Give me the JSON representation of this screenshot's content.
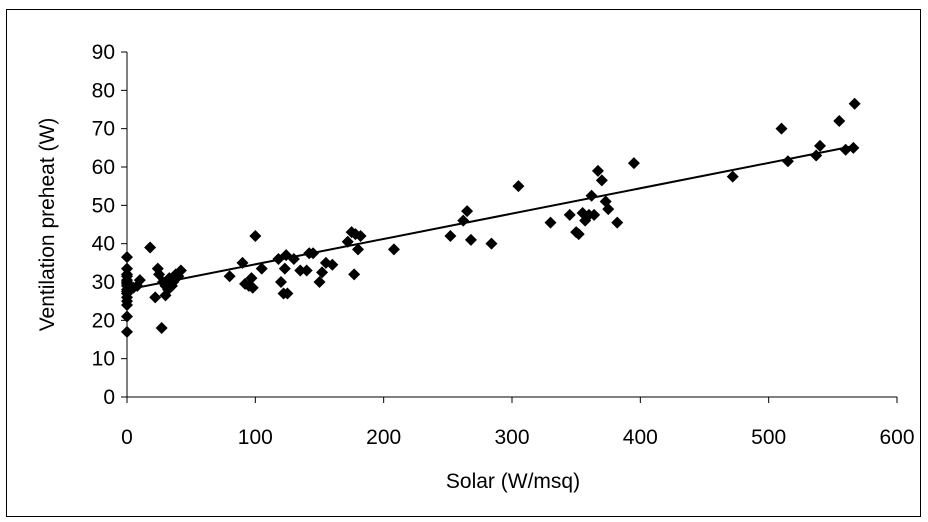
{
  "chart_data": {
    "type": "scatter",
    "title": "",
    "xlabel": "Solar  (W/msq)",
    "ylabel": "Ventilation preheat (W)",
    "xlim": [
      0,
      600
    ],
    "ylim": [
      0,
      90
    ],
    "xticks": [
      0,
      100,
      200,
      300,
      400,
      500,
      600
    ],
    "yticks": [
      0,
      10,
      20,
      30,
      40,
      50,
      60,
      70,
      80,
      90
    ],
    "grid": false,
    "legend": "none",
    "marker": "diamond",
    "marker_color": "#000000",
    "trendline": {
      "type": "linear",
      "x": [
        0,
        567
      ],
      "y": [
        28,
        65.5
      ],
      "color": "#000000"
    },
    "series": [
      {
        "x": [
          0,
          0,
          0,
          0,
          0,
          0,
          0,
          0,
          0,
          0,
          0,
          0,
          0,
          0,
          0,
          0,
          5,
          8,
          10,
          18,
          22,
          24,
          25,
          27,
          28,
          30,
          30,
          32,
          33,
          35,
          36,
          38,
          40,
          42,
          80,
          90,
          92,
          95,
          97,
          98,
          100,
          105,
          118,
          120,
          122,
          123,
          124,
          125,
          130,
          135,
          140,
          142,
          145,
          150,
          152,
          155,
          160,
          172,
          175,
          177,
          178,
          180,
          182,
          208,
          252,
          262,
          265,
          268,
          284,
          305,
          330,
          345,
          350,
          352,
          355,
          357,
          360,
          362,
          364,
          367,
          370,
          373,
          375,
          382,
          395,
          472,
          510,
          515,
          537,
          540,
          555,
          560,
          566,
          567
        ],
        "y": [
          36.5,
          32,
          31.5,
          30.5,
          30,
          29.5,
          29,
          28,
          27.5,
          27,
          26,
          25,
          24,
          21,
          17,
          33.5,
          28.5,
          29,
          30.5,
          39,
          26,
          33.5,
          32,
          18,
          30,
          26.5,
          29,
          28,
          31,
          29,
          30,
          32,
          31.5,
          33,
          31.5,
          35,
          29.5,
          29,
          31,
          28.5,
          42,
          33.5,
          36,
          30,
          27,
          33.5,
          37,
          27,
          36,
          33,
          33,
          37.5,
          37.5,
          30,
          32.5,
          35,
          34.5,
          40.5,
          43,
          32,
          42.5,
          38.5,
          42,
          38.5,
          42,
          46,
          48.5,
          41,
          40,
          55,
          45.5,
          47.5,
          43,
          42.5,
          48,
          46,
          47.5,
          52.5,
          47.5,
          59,
          56.5,
          51,
          49,
          45.5,
          61,
          57.5,
          70,
          61.5,
          63,
          65.5,
          72,
          64.5,
          65,
          76.5
        ]
      }
    ]
  }
}
